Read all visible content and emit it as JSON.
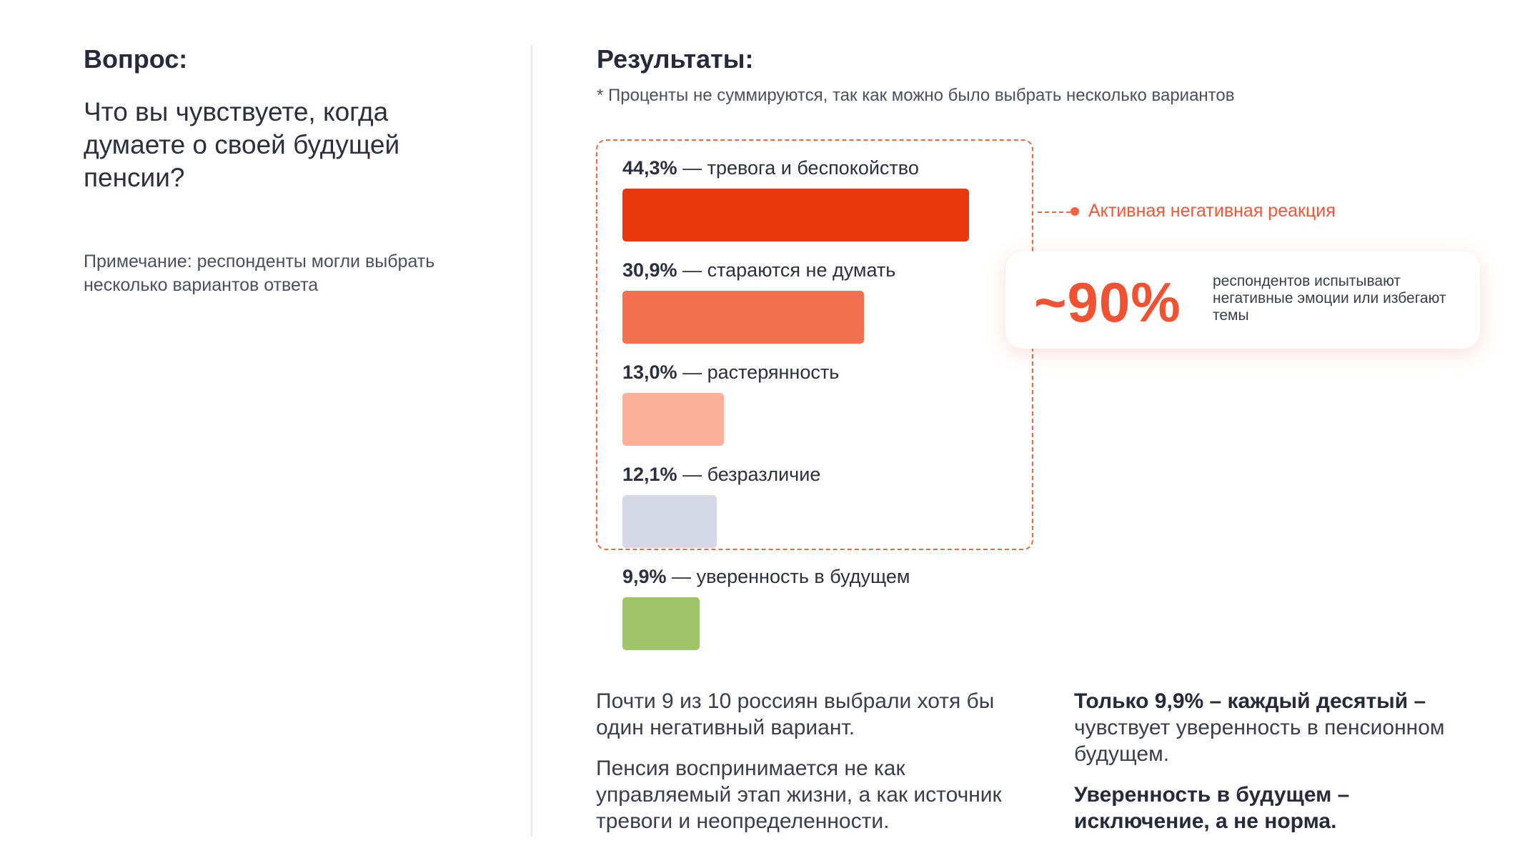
{
  "question": {
    "heading": "Вопрос:",
    "text": "Что вы чувствуете, когда думаете о своей будущей пенсии?",
    "note": "Примечание: респонденты могли выбрать несколько вариантов ответа"
  },
  "results": {
    "heading": "Результаты:",
    "note": "* Проценты не суммируются, так как можно было выбрать несколько вариантов"
  },
  "chart_data": {
    "type": "bar",
    "orientation": "horizontal",
    "unit": "%",
    "categories": [
      "тревога и беспокойство",
      "стараются не думать",
      "растерянность",
      "безразличие",
      "уверенность в будущем"
    ],
    "values": [
      44.3,
      30.9,
      13.0,
      12.1,
      9.9
    ],
    "value_labels": [
      "44,3%",
      "30,9%",
      "13,0%",
      "12,1%",
      "9,9%"
    ],
    "colors": [
      "#e9380c",
      "#f2704e",
      "#fdb09a",
      "#d5d9e7",
      "#a0c46a"
    ],
    "separator": "—",
    "highlight_group": {
      "label": "Активная негативная реакция",
      "includes": [
        "тревога и беспокойство",
        "стараются не думать",
        "растерянность",
        "безразличие"
      ],
      "color": "#f26440"
    }
  },
  "callout": {
    "value": "~90%",
    "text": "респондентов испытывают негативные эмоции или избегают темы"
  },
  "summary": {
    "left_p1": "Почти 9 из 10 россиян выбрали хотя бы один негативный вариант.",
    "left_p2": "Пенсия воспринимается не как управляемый этап жизни, а как источник тревоги и неопределенности.",
    "right_p1_strong": "Только 9,9% – каждый десятый –",
    "right_p1_rest": "чувствует уверенность в пенсионном будущем.",
    "right_p2": "Уверенность в будущем – исключение, а не норма."
  }
}
